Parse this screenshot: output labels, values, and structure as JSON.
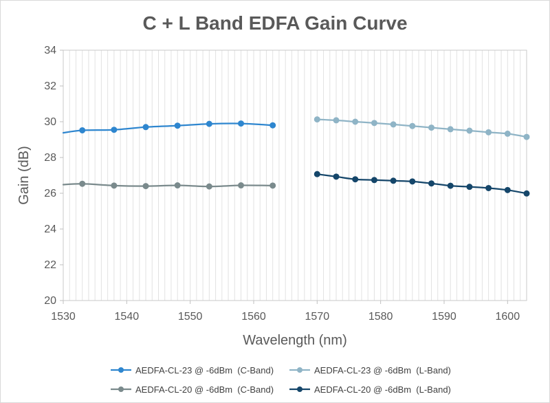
{
  "chart_data": {
    "type": "line",
    "title": "C + L Band EDFA Gain Curve",
    "xlabel": "Wavelength (nm)",
    "ylabel": "Gain (dB)",
    "xlim": [
      1530,
      1603
    ],
    "ylim": [
      20,
      34
    ],
    "x_ticks": [
      "1530",
      "1540",
      "1550",
      "1560",
      "1570",
      "1580",
      "1590",
      "1600"
    ],
    "y_ticks": [
      "20",
      "22",
      "24",
      "26",
      "28",
      "30",
      "32",
      "34"
    ],
    "grid": "vertical",
    "legend_position": "bottom",
    "series": [
      {
        "name": "AEDFA-CL-23 @ -6dBm  (C-Band)",
        "color": "#2e86cf",
        "points": [
          [
            1530,
            29.38
          ],
          [
            1533,
            29.52
          ],
          [
            1538,
            29.55
          ],
          [
            1543,
            29.7
          ],
          [
            1548,
            29.78
          ],
          [
            1553,
            29.88
          ],
          [
            1558,
            29.9
          ],
          [
            1563,
            29.8
          ]
        ]
      },
      {
        "name": "AEDFA-CL-23 @ -6dBm  (L-Band)",
        "color": "#8fb4c6",
        "points": [
          [
            1570,
            30.13
          ],
          [
            1573,
            30.08
          ],
          [
            1576,
            30.0
          ],
          [
            1579,
            29.93
          ],
          [
            1582,
            29.85
          ],
          [
            1585,
            29.76
          ],
          [
            1588,
            29.67
          ],
          [
            1591,
            29.58
          ],
          [
            1594,
            29.5
          ],
          [
            1597,
            29.41
          ],
          [
            1600,
            29.33
          ],
          [
            1603,
            29.15
          ]
        ]
      },
      {
        "name": "AEDFA-CL-20 @ -6dBm  (C-Band)",
        "color": "#7a8a8c",
        "points": [
          [
            1530,
            26.48
          ],
          [
            1533,
            26.53
          ],
          [
            1538,
            26.43
          ],
          [
            1543,
            26.4
          ],
          [
            1548,
            26.44
          ],
          [
            1553,
            26.38
          ],
          [
            1558,
            26.44
          ],
          [
            1563,
            26.43
          ]
        ]
      },
      {
        "name": "AEDFA-CL-20 @ -6dBm  (L-Band)",
        "color": "#15466a",
        "points": [
          [
            1570,
            27.07
          ],
          [
            1573,
            26.93
          ],
          [
            1576,
            26.78
          ],
          [
            1579,
            26.74
          ],
          [
            1582,
            26.7
          ],
          [
            1585,
            26.66
          ],
          [
            1588,
            26.55
          ],
          [
            1591,
            26.42
          ],
          [
            1594,
            26.36
          ],
          [
            1597,
            26.29
          ],
          [
            1600,
            26.18
          ],
          [
            1603,
            25.99
          ]
        ]
      }
    ]
  }
}
